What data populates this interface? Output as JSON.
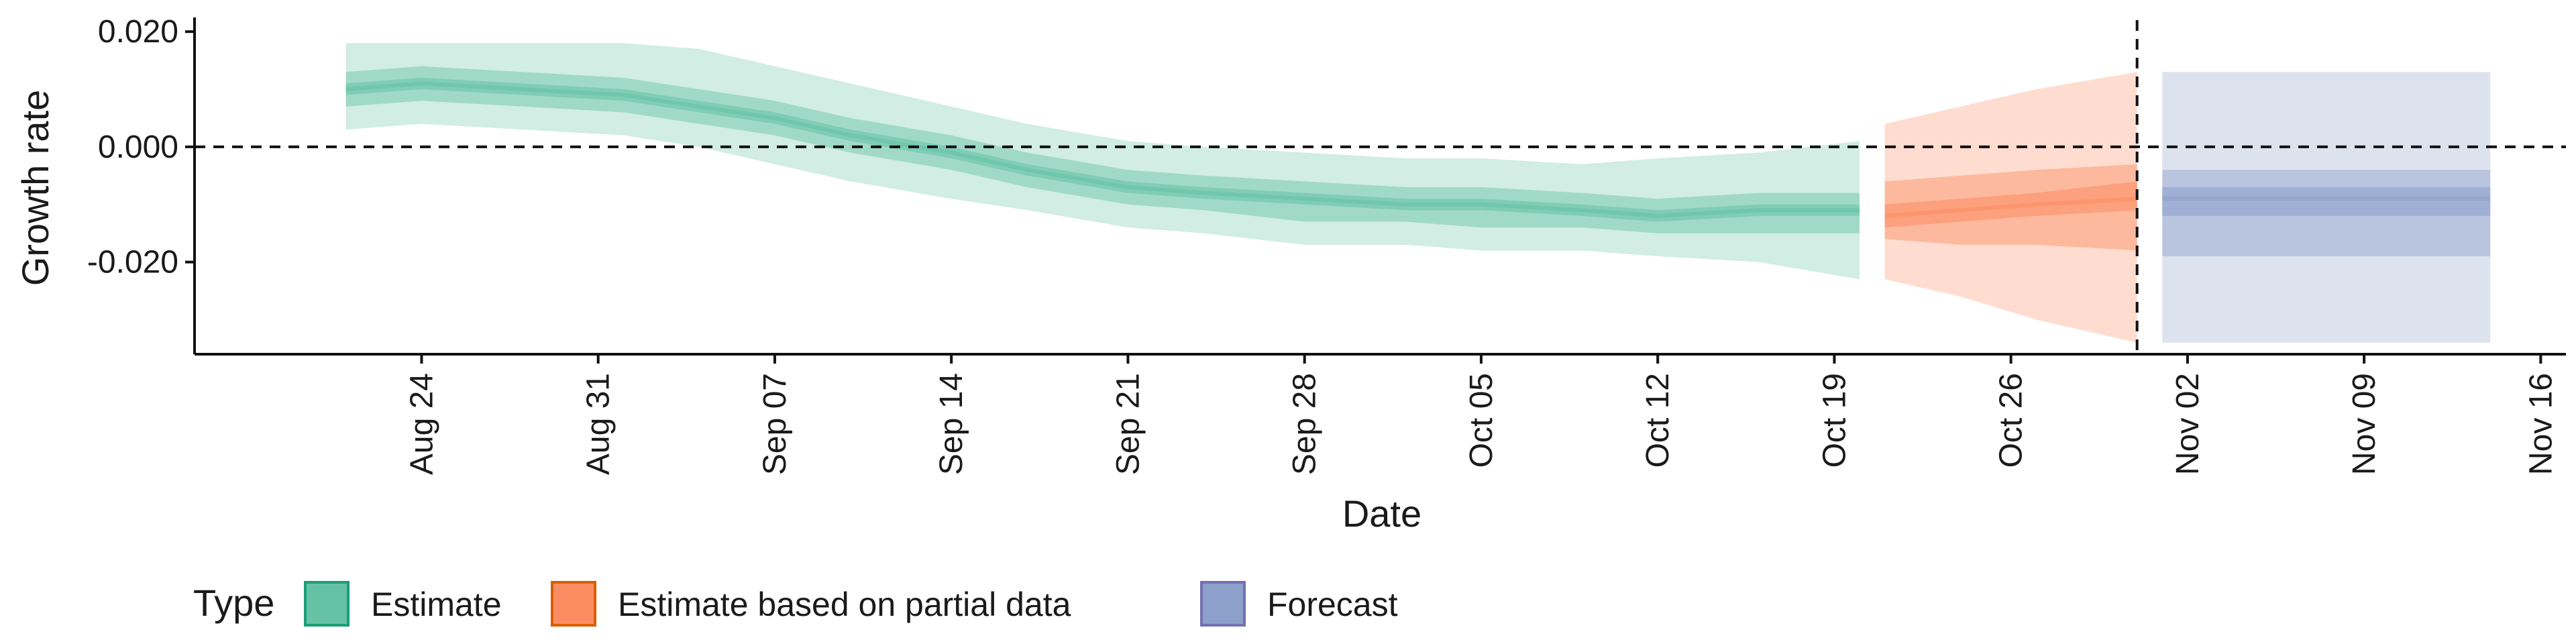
{
  "chart_data": {
    "type": "area",
    "xlabel": "Date",
    "ylabel": "Growth rate",
    "ylim": [
      -0.036,
      0.022
    ],
    "xlim": [
      "2020-08-15",
      "2020-11-17"
    ],
    "x_ticks": [
      {
        "date": "2020-08-24",
        "label": "Aug 24"
      },
      {
        "date": "2020-08-31",
        "label": "Aug 31"
      },
      {
        "date": "2020-09-07",
        "label": "Sep 07"
      },
      {
        "date": "2020-09-14",
        "label": "Sep 14"
      },
      {
        "date": "2020-09-21",
        "label": "Sep 21"
      },
      {
        "date": "2020-09-28",
        "label": "Sep 28"
      },
      {
        "date": "2020-10-05",
        "label": "Oct 05"
      },
      {
        "date": "2020-10-12",
        "label": "Oct 12"
      },
      {
        "date": "2020-10-19",
        "label": "Oct 19"
      },
      {
        "date": "2020-10-26",
        "label": "Oct 26"
      },
      {
        "date": "2020-11-02",
        "label": "Nov 02"
      },
      {
        "date": "2020-11-09",
        "label": "Nov 09"
      },
      {
        "date": "2020-11-16",
        "label": "Nov 16"
      }
    ],
    "y_ticks": [
      {
        "value": 0.02,
        "label": "0.020"
      },
      {
        "value": 0.0,
        "label": "0.000"
      },
      {
        "value": -0.02,
        "label": "-0.020"
      }
    ],
    "reference_lines": {
      "horizontal_y": 0.0,
      "vertical_date": "2020-10-31"
    },
    "legend": {
      "title": "Type",
      "position": "bottom",
      "entries": [
        {
          "label": "Estimate",
          "fill": "#66c2a5",
          "stroke": "#1b9e77"
        },
        {
          "label": "Estimate based on partial data",
          "fill": "#fc8d62",
          "stroke": "#d95f02"
        },
        {
          "label": "Forecast",
          "fill": "#8da0cb",
          "stroke": "#7570b3"
        }
      ]
    },
    "series": [
      {
        "name": "Estimate",
        "color": "#66c2a5",
        "x": [
          "2020-08-21",
          "2020-08-24",
          "2020-08-28",
          "2020-09-01",
          "2020-09-04",
          "2020-09-07",
          "2020-09-10",
          "2020-09-14",
          "2020-09-17",
          "2020-09-21",
          "2020-09-24",
          "2020-09-28",
          "2020-10-02",
          "2020-10-05",
          "2020-10-09",
          "2020-10-12",
          "2020-10-16",
          "2020-10-20"
        ],
        "median": [
          0.01,
          0.011,
          0.01,
          0.009,
          0.007,
          0.005,
          0.002,
          -0.001,
          -0.004,
          -0.007,
          -0.008,
          -0.009,
          -0.01,
          -0.01,
          -0.011,
          -0.012,
          -0.011,
          -0.011
        ],
        "band_20": [
          [
            0.009,
            0.011
          ],
          [
            0.01,
            0.012
          ],
          [
            0.009,
            0.011
          ],
          [
            0.008,
            0.01
          ],
          [
            0.006,
            0.008
          ],
          [
            0.004,
            0.006
          ],
          [
            0.001,
            0.003
          ],
          [
            -0.002,
            0.0
          ],
          [
            -0.005,
            -0.003
          ],
          [
            -0.008,
            -0.006
          ],
          [
            -0.009,
            -0.007
          ],
          [
            -0.01,
            -0.008
          ],
          [
            -0.011,
            -0.009
          ],
          [
            -0.011,
            -0.009
          ],
          [
            -0.012,
            -0.01
          ],
          [
            -0.013,
            -0.011
          ],
          [
            -0.012,
            -0.01
          ],
          [
            -0.012,
            -0.01
          ]
        ],
        "band_50": [
          [
            0.007,
            0.013
          ],
          [
            0.008,
            0.014
          ],
          [
            0.007,
            0.013
          ],
          [
            0.006,
            0.012
          ],
          [
            0.004,
            0.01
          ],
          [
            0.002,
            0.008
          ],
          [
            -0.001,
            0.005
          ],
          [
            -0.004,
            0.002
          ],
          [
            -0.007,
            -0.001
          ],
          [
            -0.01,
            -0.004
          ],
          [
            -0.011,
            -0.005
          ],
          [
            -0.013,
            -0.006
          ],
          [
            -0.013,
            -0.007
          ],
          [
            -0.014,
            -0.007
          ],
          [
            -0.014,
            -0.008
          ],
          [
            -0.015,
            -0.009
          ],
          [
            -0.015,
            -0.008
          ],
          [
            -0.015,
            -0.008
          ]
        ],
        "band_90": [
          [
            0.003,
            0.018
          ],
          [
            0.004,
            0.018
          ],
          [
            0.003,
            0.018
          ],
          [
            0.002,
            0.018
          ],
          [
            0.0,
            0.017
          ],
          [
            -0.003,
            0.014
          ],
          [
            -0.006,
            0.011
          ],
          [
            -0.009,
            0.007
          ],
          [
            -0.011,
            0.004
          ],
          [
            -0.014,
            0.001
          ],
          [
            -0.015,
            0.0
          ],
          [
            -0.017,
            -0.001
          ],
          [
            -0.017,
            -0.002
          ],
          [
            -0.018,
            -0.002
          ],
          [
            -0.018,
            -0.003
          ],
          [
            -0.019,
            -0.002
          ],
          [
            -0.02,
            -0.001
          ],
          [
            -0.023,
            0.001
          ]
        ]
      },
      {
        "name": "Estimate based on partial data",
        "color": "#fc8d62",
        "x": [
          "2020-10-21",
          "2020-10-24",
          "2020-10-27",
          "2020-10-31"
        ],
        "median": [
          -0.012,
          -0.011,
          -0.01,
          -0.009
        ],
        "band_20": [
          [
            -0.014,
            -0.01
          ],
          [
            -0.013,
            -0.009
          ],
          [
            -0.012,
            -0.008
          ],
          [
            -0.011,
            -0.006
          ]
        ],
        "band_50": [
          [
            -0.016,
            -0.006
          ],
          [
            -0.017,
            -0.005
          ],
          [
            -0.017,
            -0.004
          ],
          [
            -0.018,
            -0.003
          ]
        ],
        "band_90": [
          [
            -0.023,
            0.004
          ],
          [
            -0.026,
            0.007
          ],
          [
            -0.03,
            0.01
          ],
          [
            -0.034,
            0.013
          ]
        ]
      },
      {
        "name": "Forecast",
        "color": "#8da0cb",
        "x": [
          "2020-11-01",
          "2020-11-14"
        ],
        "median": [
          -0.009,
          -0.009
        ],
        "band_20": [
          [
            -0.012,
            -0.007
          ],
          [
            -0.012,
            -0.007
          ]
        ],
        "band_50": [
          [
            -0.019,
            -0.004
          ],
          [
            -0.019,
            -0.004
          ]
        ],
        "band_90": [
          [
            -0.034,
            0.013
          ],
          [
            -0.034,
            0.013
          ]
        ]
      }
    ]
  }
}
